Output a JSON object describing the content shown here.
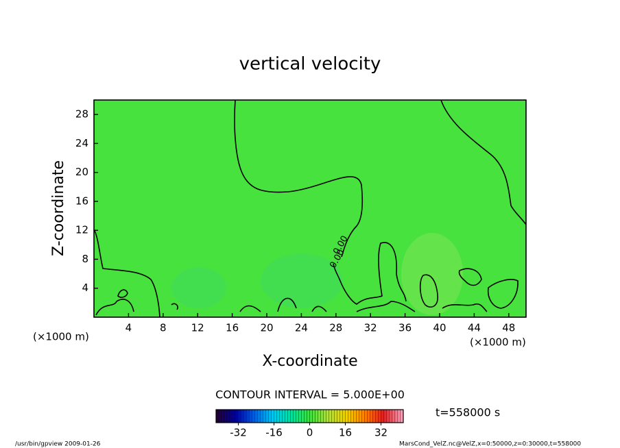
{
  "chart_data": {
    "type": "contour",
    "title": "vertical velocity",
    "xlabel": "X-coordinate",
    "ylabel": "Z-coordinate",
    "x_unit_label": "(×1000 m)",
    "y_unit_label": "(×1000 m)",
    "xlim": [
      0,
      50
    ],
    "ylim": [
      0,
      30
    ],
    "xticks": [
      4,
      8,
      12,
      16,
      20,
      24,
      28,
      32,
      36,
      40,
      44,
      48
    ],
    "yticks": [
      4,
      8,
      12,
      16,
      20,
      24,
      28
    ],
    "field_color": "#48e23e",
    "contour_labels": [
      "0.00",
      "0.00"
    ],
    "contour_interval": "CONTOUR INTERVAL = 5.000E+00",
    "clim": [
      -42,
      42
    ],
    "cticks": [
      -32,
      -16,
      0,
      16,
      32
    ],
    "colormap": [
      "#20003a",
      "#0000a0",
      "#0060e0",
      "#00c8f0",
      "#00e0a0",
      "#40e040",
      "#b0e040",
      "#f0d000",
      "#ff8000",
      "#e02020",
      "#ffa0b8"
    ],
    "time_label": "t=558000 s",
    "footer_left": "/usr/bin/gpview   2009-01-26",
    "footer_right": "MarsCond_VelZ.nc@VelZ,x=0:50000,z=0:30000,t=558000"
  }
}
